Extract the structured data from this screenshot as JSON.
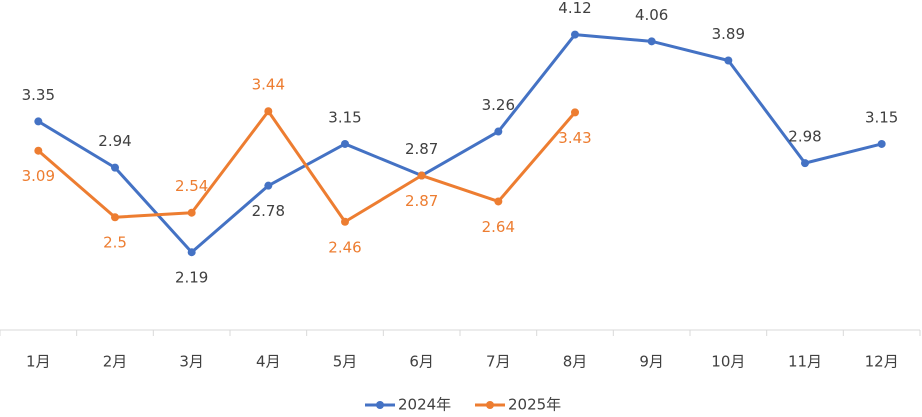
{
  "chart_data": {
    "type": "line",
    "categories": [
      "1月",
      "2月",
      "3月",
      "4月",
      "5月",
      "6月",
      "7月",
      "8月",
      "9月",
      "10月",
      "11月",
      "12月"
    ],
    "series": [
      {
        "name": "2024年",
        "color": "#4472c4",
        "values": [
          3.35,
          2.94,
          2.19,
          2.78,
          3.15,
          2.87,
          3.26,
          4.12,
          4.06,
          3.89,
          2.98,
          3.15
        ]
      },
      {
        "name": "2025年",
        "color": "#ed7d31",
        "values": [
          3.09,
          2.5,
          2.54,
          3.44,
          2.46,
          2.87,
          2.64,
          3.43,
          null,
          null,
          null,
          null
        ]
      }
    ],
    "ylim": [
      1.5,
      4.4
    ]
  }
}
